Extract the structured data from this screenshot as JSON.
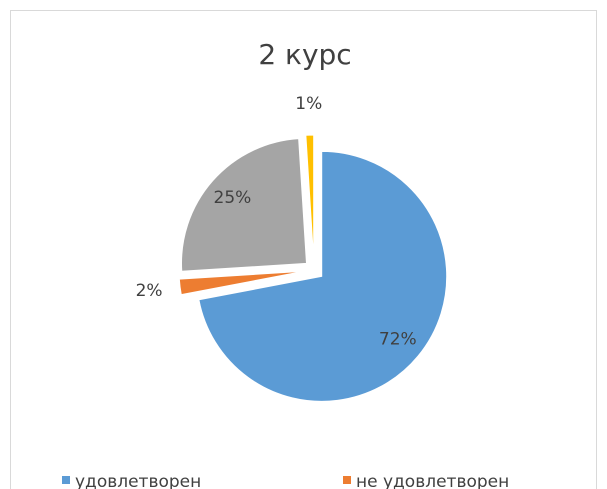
{
  "chart_data": {
    "type": "pie",
    "title": "2 курс",
    "categories": [
      "удовлетворен",
      "не удовлетворен",
      null,
      null
    ],
    "values": [
      72,
      2,
      25,
      1
    ],
    "value_labels": [
      "72%",
      "2%",
      "25%",
      "1%"
    ],
    "colors": [
      "#5b9bd5",
      "#ed7d31",
      "#a5a5a5",
      "#ffc000"
    ],
    "exploded": true,
    "legend": "bottom"
  }
}
